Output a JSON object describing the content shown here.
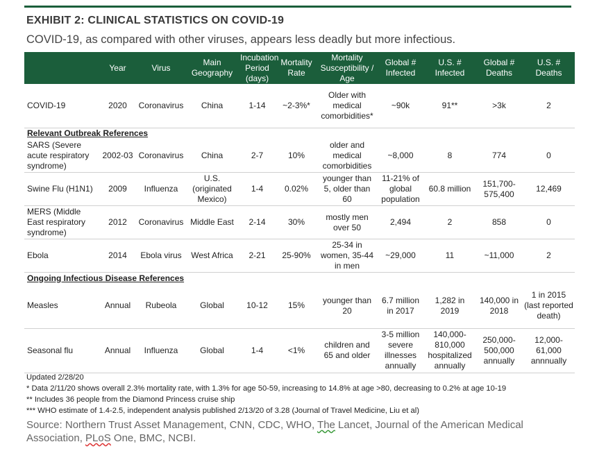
{
  "title": "EXHIBIT 2: CLINICAL STATISTICS ON COVID-19",
  "subtitle": "COVID-19, as compared with other viruses, appears less deadly but more infectious.",
  "header_color": "#1b5e3b",
  "columns": [
    "",
    "Year",
    "Virus",
    "Main Geography",
    "Incubation Period (days)",
    "Mortality Rate",
    "Mortality Susceptibility / Age",
    "Global # Infected",
    "U.S. # Infected",
    "Global # Deaths",
    "U.S. # Deaths"
  ],
  "covid": [
    "COVID-19",
    "2020",
    "Coronavirus",
    "China",
    "1-14",
    "~2-3%*",
    "Older with medical comorbidities*",
    "~90k",
    "91**",
    ">3k",
    "2"
  ],
  "section1": "Relevant Outbreak References",
  "outbreaks": [
    [
      "SARS (Severe acute respiratory syndrome)",
      "2002-03",
      "Coronavirus",
      "China",
      "2-7",
      "10%",
      "older and medical comorbidities",
      "~8,000",
      "8",
      "774",
      "0"
    ],
    [
      "Swine Flu (H1N1)",
      "2009",
      "Influenza",
      "U.S. (originated Mexico)",
      "1-4",
      "0.02%",
      "younger than 5, older than 60",
      "11-21% of global population",
      "60.8 million",
      "151,700-575,400",
      "12,469"
    ],
    [
      "MERS (Middle East respiratory syndrome)",
      "2012",
      "Coronavirus",
      "Middle East",
      "2-14",
      "30%",
      "mostly men over 50",
      "2,494",
      "2",
      "858",
      "0"
    ],
    [
      "Ebola",
      "2014",
      "Ebola virus",
      "West Africa",
      "2-21",
      "25-90%",
      "25-34 in women, 35-44 in men",
      "~29,000",
      "11",
      "~11,000",
      "2"
    ]
  ],
  "section2": "Ongoing Infectious Disease References",
  "ongoing": [
    [
      "Measles",
      "Annual",
      "Rubeola",
      "Global",
      "10-12",
      "15%",
      "younger than 20",
      "6.7 million in 2017",
      "1,282 in 2019",
      "140,000 in 2018",
      "1 in 2015 (last reported death)"
    ],
    [
      "Seasonal flu",
      "Annual",
      "Influenza",
      "Global",
      "1-4",
      "<1%",
      "children and 65 and older",
      "3-5 million severe illnesses annually",
      "140,000-810,000 hospitalized annually",
      "250,000-500,000 annually",
      "12,000-61,000 annnually"
    ]
  ],
  "notes": {
    "updated": "Updated 2/28/20",
    "n1": "* Data 2/11/20 shows overall 2.3% mortality rate, with 1.3% for age 50-59, increasing to 14.8% at age >80, decreasing to 0.2% at age 10-19",
    "n2": "** Includes 36 people from the Diamond Princess cruise ship",
    "n3": "*** WHO estimate of 1.4-2.5, independent analysis published 2/13/20 of 3.28 (Journal of Travel Medicine, Liu et al)"
  },
  "source": {
    "p1": "Source: Northern Trust Asset Management, CNN, CDC, WHO, ",
    "the": "The",
    "p2": " Lancet, Journal of the American Medical Association, ",
    "plos": "PLoS",
    "p3": " One, BMC, NCBI."
  }
}
